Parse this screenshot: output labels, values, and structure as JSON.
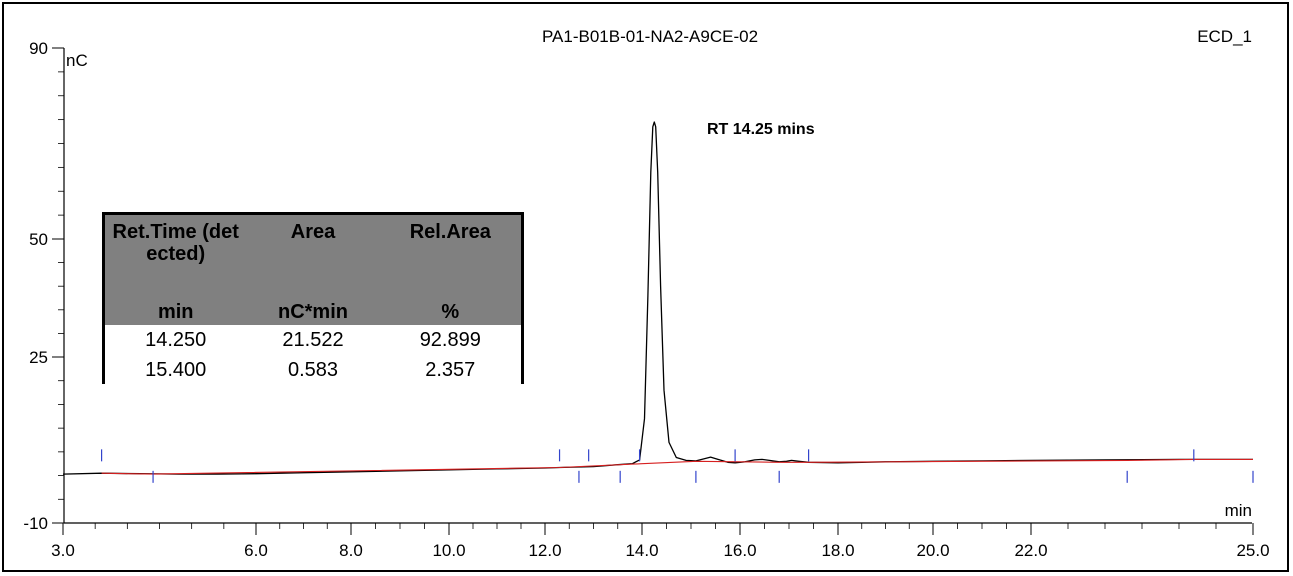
{
  "chart_data": {
    "type": "line",
    "title": "PA1-B01B-01-NA2-A9CE-02",
    "channel": "ECD_1",
    "xlabel": "min",
    "ylabel": "nC",
    "xlim": [
      3.0,
      25.0
    ],
    "ylim": [
      -10,
      90
    ],
    "x_ticks": [
      3.0,
      6.0,
      8.0,
      10.0,
      12.0,
      14.0,
      16.0,
      18.0,
      20.0,
      22.0,
      25.0
    ],
    "x_tick_labels": [
      "3.0",
      "6.0",
      "8.0",
      "10.0",
      "12.0",
      "14.0",
      "16.0",
      "18.0",
      "20.0",
      "22.0",
      "25.0"
    ],
    "y_ticks": [
      -10,
      25,
      50,
      90
    ],
    "y_tick_labels": [
      "-10",
      "25",
      "50",
      "90"
    ],
    "annotation": {
      "text": "RT 14.25 mins",
      "x": 14.25,
      "y": 74.5
    },
    "series": [
      {
        "color": "#000000",
        "x": [
          3.0,
          3.6,
          4.2,
          4.8,
          5.4,
          6.0,
          7.0,
          8.0,
          9.0,
          10.0,
          11.0,
          12.0,
          12.3,
          12.7,
          13.0,
          13.5,
          13.8,
          13.95,
          14.05,
          14.12,
          14.18,
          14.22,
          14.25,
          14.28,
          14.32,
          14.38,
          14.45,
          14.55,
          14.7,
          14.9,
          15.1,
          15.25,
          15.4,
          15.55,
          15.75,
          15.9,
          16.1,
          16.3,
          16.45,
          16.6,
          16.8,
          16.95,
          17.05,
          17.2,
          17.4,
          18.0,
          19.0,
          20.0,
          21.0,
          22.0,
          23.0,
          24.0,
          25.0
        ],
        "y": [
          0.3,
          0.5,
          0.4,
          0.3,
          0.3,
          0.4,
          0.6,
          0.8,
          1.0,
          1.2,
          1.4,
          1.6,
          1.7,
          1.8,
          1.9,
          2.3,
          2.5,
          3.3,
          12.0,
          38.0,
          64.0,
          73.5,
          74.5,
          73.5,
          64.0,
          40.0,
          18.0,
          7.0,
          3.8,
          3.2,
          3.1,
          3.5,
          3.9,
          3.4,
          2.8,
          2.7,
          2.9,
          3.3,
          3.4,
          3.2,
          2.9,
          3.0,
          3.2,
          3.0,
          2.8,
          2.7,
          2.9,
          3.0,
          3.1,
          3.2,
          3.3,
          3.4,
          3.4
        ]
      },
      {
        "color": "#d62020",
        "x": [
          3.6,
          4.4,
          12.3,
          14.0,
          15.1,
          16.8,
          17.4,
          23.3,
          24.2,
          25.0
        ],
        "y": [
          0.5,
          0.3,
          1.7,
          2.5,
          3.0,
          2.8,
          2.8,
          3.2,
          3.4,
          3.4
        ]
      }
    ],
    "integration_marks": [
      3.6,
      4.4,
      12.3,
      12.7,
      12.9,
      13.55,
      13.95,
      15.1,
      15.9,
      16.8,
      17.4,
      23.3,
      24.2,
      25.0
    ]
  },
  "table": {
    "headers": [
      {
        "label": "Ret.Time (detected)",
        "unit": "min"
      },
      {
        "label": "Area",
        "unit": "nC*min"
      },
      {
        "label": "Rel.Area",
        "unit": "%"
      }
    ],
    "rows": [
      [
        "14.250",
        "21.522",
        "92.899"
      ],
      [
        "15.400",
        "0.583",
        "2.357"
      ]
    ]
  }
}
